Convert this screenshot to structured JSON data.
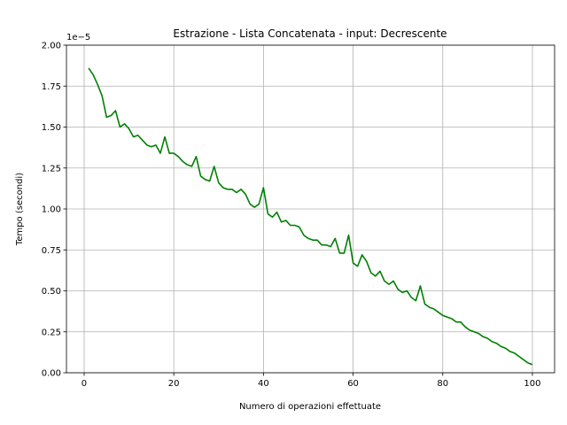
{
  "chart_data": {
    "type": "line",
    "title": "Estrazione - Lista Concatenata - input: Decrescente",
    "xlabel": "Numero di operazioni effettuate",
    "ylabel": "Tempo (secondi)",
    "y_offset_label": "1e−5",
    "xlim": [
      -3.95,
      104.95
    ],
    "ylim": [
      0,
      2.0
    ],
    "grid": true,
    "x_ticks": [
      0,
      20,
      40,
      60,
      80,
      100
    ],
    "x_tick_labels": [
      "0",
      "20",
      "40",
      "60",
      "80",
      "100"
    ],
    "y_ticks": [
      0,
      0.25,
      0.5,
      0.75,
      1.0,
      1.25,
      1.5,
      1.75,
      2.0
    ],
    "y_tick_labels": [
      "0.00",
      "0.25",
      "0.50",
      "0.75",
      "1.00",
      "1.25",
      "1.50",
      "1.75",
      "2.00"
    ],
    "series": [
      {
        "color": "#008000",
        "x": [
          1,
          2,
          3,
          4,
          5,
          6,
          7,
          8,
          9,
          10,
          11,
          12,
          13,
          14,
          15,
          16,
          17,
          18,
          19,
          20,
          21,
          22,
          23,
          24,
          25,
          26,
          27,
          28,
          29,
          30,
          31,
          32,
          33,
          34,
          35,
          36,
          37,
          38,
          39,
          40,
          41,
          42,
          43,
          44,
          45,
          46,
          47,
          48,
          49,
          50,
          51,
          52,
          53,
          54,
          55,
          56,
          57,
          58,
          59,
          60,
          61,
          62,
          63,
          64,
          65,
          66,
          67,
          68,
          69,
          70,
          71,
          72,
          73,
          74,
          75,
          76,
          77,
          78,
          79,
          80,
          81,
          82,
          83,
          84,
          85,
          86,
          87,
          88,
          89,
          90,
          91,
          92,
          93,
          94,
          95,
          96,
          97,
          98,
          99,
          100
        ],
        "values": [
          1.86,
          1.82,
          1.76,
          1.69,
          1.56,
          1.57,
          1.6,
          1.5,
          1.52,
          1.49,
          1.44,
          1.45,
          1.42,
          1.39,
          1.38,
          1.39,
          1.34,
          1.44,
          1.34,
          1.34,
          1.32,
          1.29,
          1.27,
          1.26,
          1.32,
          1.2,
          1.18,
          1.17,
          1.26,
          1.16,
          1.13,
          1.12,
          1.12,
          1.1,
          1.12,
          1.09,
          1.03,
          1.01,
          1.03,
          1.13,
          0.97,
          0.95,
          0.98,
          0.92,
          0.93,
          0.9,
          0.9,
          0.89,
          0.84,
          0.82,
          0.81,
          0.81,
          0.78,
          0.78,
          0.77,
          0.82,
          0.73,
          0.73,
          0.84,
          0.67,
          0.65,
          0.72,
          0.68,
          0.61,
          0.59,
          0.62,
          0.56,
          0.54,
          0.56,
          0.51,
          0.49,
          0.5,
          0.46,
          0.44,
          0.53,
          0.42,
          0.4,
          0.39,
          0.37,
          0.35,
          0.34,
          0.33,
          0.31,
          0.31,
          0.28,
          0.26,
          0.25,
          0.24,
          0.22,
          0.21,
          0.19,
          0.18,
          0.16,
          0.15,
          0.13,
          0.12,
          0.1,
          0.08,
          0.06,
          0.05
        ]
      }
    ]
  }
}
